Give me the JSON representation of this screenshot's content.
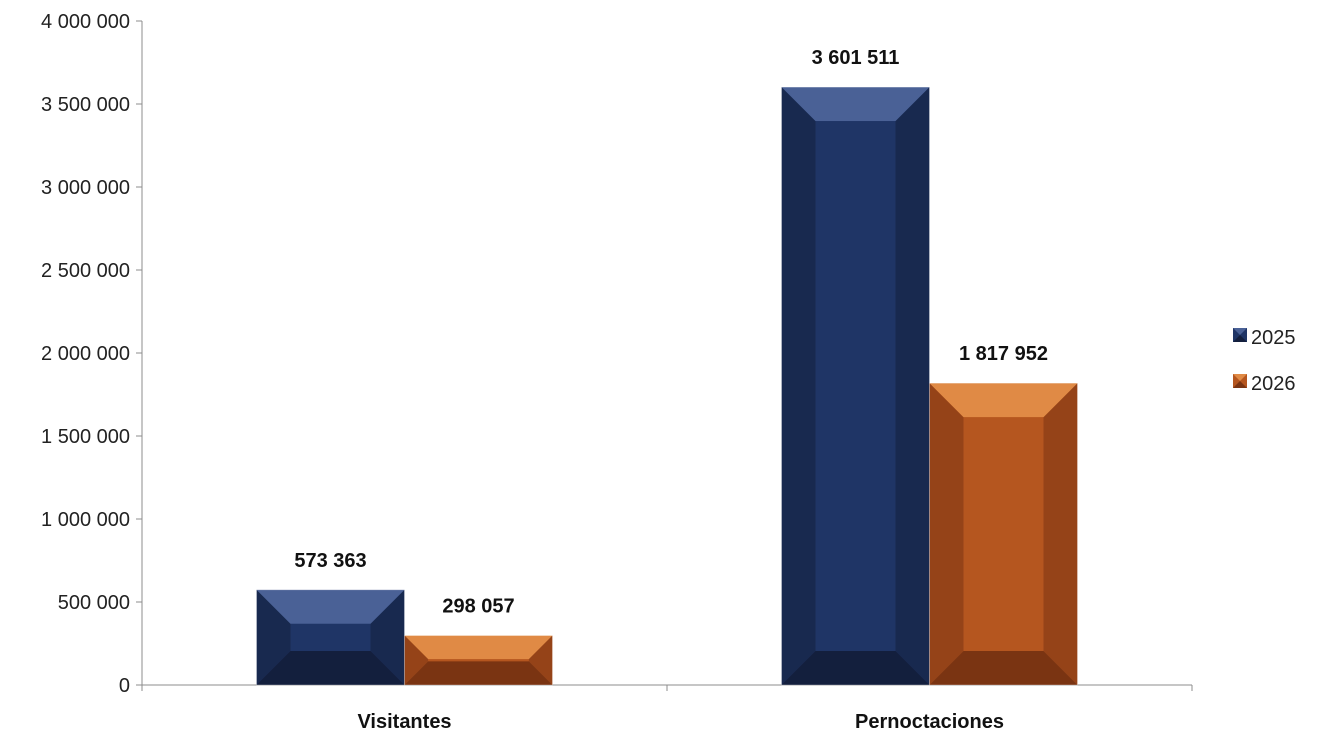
{
  "chart_data": {
    "type": "bar",
    "title": "",
    "xlabel": "",
    "ylabel": "",
    "categories": [
      "Visitantes",
      "Pernoctaciones"
    ],
    "series": [
      {
        "name": "2025",
        "values": [
          573363,
          3601511
        ],
        "labels": [
          "573 363",
          "3 601 511"
        ],
        "color": "#1f3566",
        "color_dark": "#131f3d",
        "color_light": "#4a6196"
      },
      {
        "name": "2026",
        "values": [
          298057,
          1817952
        ],
        "labels": [
          "298 057",
          "1 817 952"
        ],
        "color": "#b5561f",
        "color_dark": "#7a3412",
        "color_light": "#e08a45"
      }
    ],
    "ylim": [
      0,
      4000000
    ],
    "yticks": [
      0,
      500000,
      1000000,
      1500000,
      2000000,
      2500000,
      3000000,
      3500000,
      4000000
    ],
    "ytick_labels": [
      "0",
      "500 000",
      "1 000 000",
      "1 500 000",
      "2 000 000",
      "2 500 000",
      "3 000 000",
      "3 500 000",
      "4 000 000"
    ],
    "grid": false,
    "legend_position": "right"
  }
}
